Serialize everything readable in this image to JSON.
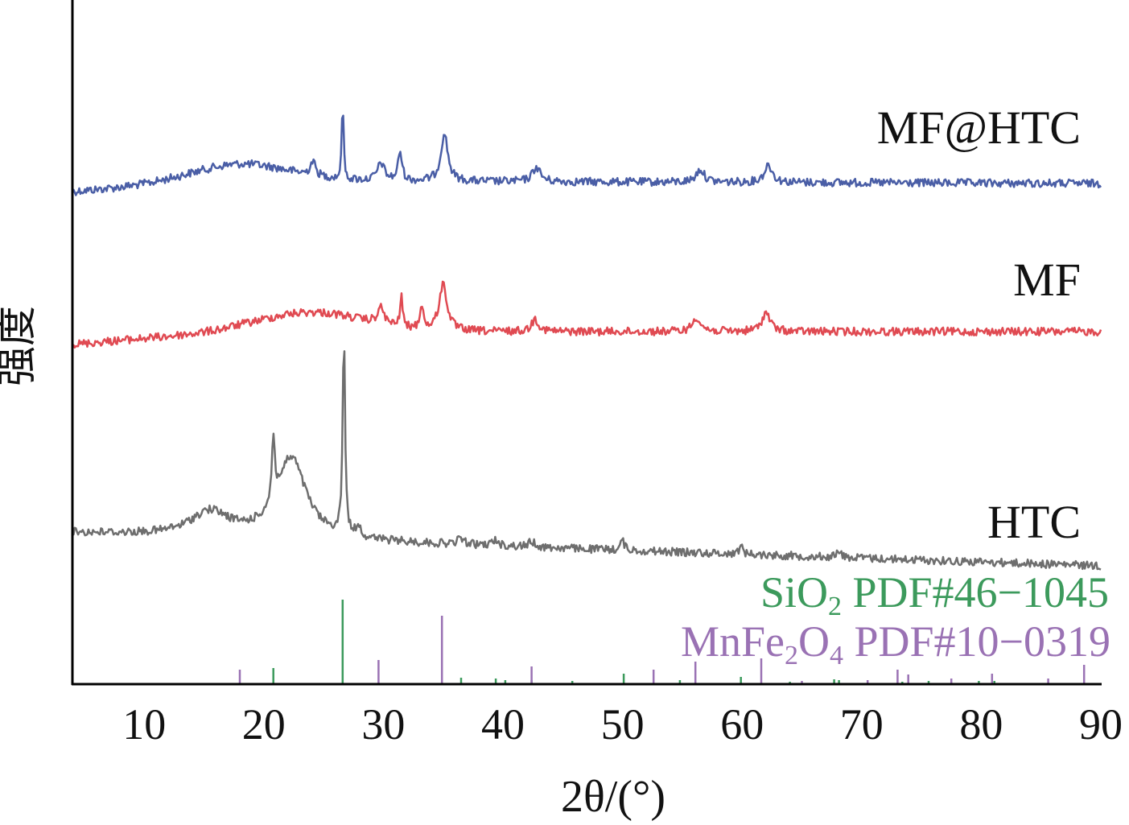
{
  "chart_data": {
    "type": "line",
    "title": "",
    "xlabel": "2θ/(°)",
    "ylabel": "强度",
    "xlim": [
      4,
      90
    ],
    "xticks": [
      10,
      20,
      30,
      40,
      50,
      60,
      70,
      80,
      90
    ],
    "y_ticks_shown": false,
    "grid": false,
    "colors": {
      "mf_htc": "#4a5ea6",
      "mf": "#e04a52",
      "htc": "#6e6e6e",
      "sio2": "#3c9a5c",
      "mnfe2o4": "#9a72b4",
      "axis": "#000000"
    },
    "series": [
      {
        "key": "mf_htc",
        "name": "MF@HTC",
        "baseline": 238,
        "end_level": 228,
        "bump_center": 18,
        "bump_height": 35,
        "peaks": [
          [
            24.1,
            18,
            0.25
          ],
          [
            26.6,
            108,
            0.08
          ],
          [
            29.8,
            22,
            0.35
          ],
          [
            31.4,
            36,
            0.2
          ],
          [
            35.1,
            60,
            0.35
          ],
          [
            42.8,
            18,
            0.4
          ],
          [
            56.5,
            16,
            0.4
          ],
          [
            62.2,
            22,
            0.4
          ]
        ]
      },
      {
        "key": "mf",
        "name": "MF",
        "baseline": 428,
        "end_level": 412,
        "bump_center": 24,
        "bump_height": 40,
        "peaks": [
          [
            29.8,
            20,
            0.35
          ],
          [
            31.5,
            40,
            0.12
          ],
          [
            33.2,
            32,
            0.15
          ],
          [
            35.0,
            58,
            0.4
          ],
          [
            42.7,
            16,
            0.35
          ],
          [
            56.2,
            18,
            0.4
          ],
          [
            62.0,
            24,
            0.4
          ]
        ]
      },
      {
        "key": "htc",
        "name": "HTC",
        "baseline": 662,
        "end_level": 703,
        "bump_center": 16,
        "bump_height": 0,
        "peaks": [
          [
            15.5,
            30,
            2.0
          ],
          [
            20.8,
            80,
            0.15
          ],
          [
            22.3,
            100,
            1.5
          ],
          [
            26.7,
            248,
            0.12
          ],
          [
            27.9,
            15,
            0.2
          ],
          [
            36.5,
            8,
            0.3
          ],
          [
            39.4,
            7,
            0.3
          ],
          [
            42.4,
            7,
            0.3
          ],
          [
            50.0,
            12,
            0.2
          ],
          [
            59.9,
            10,
            0.2
          ],
          [
            68.1,
            6,
            0.3
          ]
        ]
      }
    ],
    "reference_patterns": [
      {
        "key": "sio2",
        "name": "SiO",
        "sub": "2",
        "code": "PDF#46−1045",
        "lines": [
          [
            20.8,
            20
          ],
          [
            26.6,
            105
          ],
          [
            36.5,
            8
          ],
          [
            39.4,
            7
          ],
          [
            40.2,
            5
          ],
          [
            42.4,
            5
          ],
          [
            45.8,
            4
          ],
          [
            50.1,
            13
          ],
          [
            54.8,
            5
          ],
          [
            59.9,
            9
          ],
          [
            64.0,
            3
          ],
          [
            67.7,
            6
          ],
          [
            68.1,
            5
          ],
          [
            73.4,
            3
          ],
          [
            75.6,
            4
          ],
          [
            79.8,
            4
          ],
          [
            81.1,
            4
          ]
        ]
      },
      {
        "key": "mnfe2o4",
        "name": "MnFe",
        "sub": "2",
        "name2": "O",
        "sub2": "4",
        "code": "PDF#10−0319",
        "lines": [
          [
            18.0,
            18
          ],
          [
            29.6,
            30
          ],
          [
            34.9,
            85
          ],
          [
            42.4,
            22
          ],
          [
            52.6,
            18
          ],
          [
            56.1,
            28
          ],
          [
            61.6,
            32
          ],
          [
            65.0,
            4
          ],
          [
            70.5,
            5
          ],
          [
            73.0,
            18
          ],
          [
            73.9,
            12
          ],
          [
            77.5,
            7
          ],
          [
            80.9,
            13
          ],
          [
            85.6,
            7
          ],
          [
            88.6,
            24
          ]
        ]
      }
    ]
  }
}
